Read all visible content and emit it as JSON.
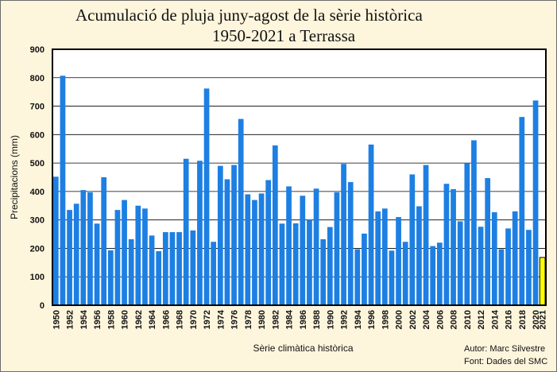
{
  "chart_data": {
    "type": "bar",
    "title_line1": "Acumulació de pluja juny-agost de la sèrie històrica",
    "title_line2": "1950-2021 a Terrassa",
    "xlabel": "Sèrie climàtica històrica",
    "ylabel": "Precipitacions (mm)",
    "ylim": [
      0,
      900
    ],
    "yticks": [
      0,
      100,
      200,
      300,
      400,
      500,
      600,
      700,
      800,
      900
    ],
    "xtick_labels": [
      "1950",
      "1952",
      "1954",
      "1956",
      "1958",
      "1960",
      "1962",
      "1964",
      "1966",
      "1968",
      "1970",
      "1972",
      "1974",
      "1976",
      "1978",
      "1980",
      "1982",
      "1984",
      "1986",
      "1988",
      "1990",
      "1992",
      "1994",
      "1996",
      "1998",
      "2000",
      "2002",
      "2004",
      "2006",
      "2008",
      "2010",
      "2012",
      "2014",
      "2016",
      "2018",
      "2020",
      "2021"
    ],
    "grid": true,
    "categories": [
      "1950",
      "1951",
      "1952",
      "1953",
      "1954",
      "1955",
      "1956",
      "1957",
      "1958",
      "1959",
      "1960",
      "1961",
      "1962",
      "1963",
      "1964",
      "1965",
      "1966",
      "1967",
      "1968",
      "1969",
      "1970",
      "1971",
      "1972",
      "1973",
      "1974",
      "1975",
      "1976",
      "1977",
      "1978",
      "1979",
      "1980",
      "1981",
      "1982",
      "1983",
      "1984",
      "1985",
      "1986",
      "1987",
      "1988",
      "1989",
      "1990",
      "1991",
      "1992",
      "1993",
      "1994",
      "1995",
      "1996",
      "1997",
      "1998",
      "1999",
      "2000",
      "2001",
      "2002",
      "2003",
      "2004",
      "2005",
      "2006",
      "2007",
      "2008",
      "2009",
      "2010",
      "2011",
      "2012",
      "2013",
      "2014",
      "2015",
      "2016",
      "2017",
      "2018",
      "2019",
      "2020",
      "2021"
    ],
    "values": [
      452,
      807,
      335,
      357,
      405,
      397,
      287,
      450,
      193,
      335,
      370,
      232,
      350,
      340,
      245,
      190,
      257,
      257,
      257,
      515,
      263,
      508,
      762,
      223,
      490,
      443,
      493,
      655,
      390,
      370,
      393,
      440,
      562,
      287,
      418,
      288,
      385,
      300,
      410,
      232,
      275,
      397,
      497,
      433,
      197,
      252,
      565,
      330,
      340,
      192,
      310,
      223,
      460,
      348,
      493,
      208,
      220,
      427,
      408,
      295,
      500,
      580,
      276,
      447,
      327,
      197,
      270,
      330,
      662,
      265,
      720,
      168
    ],
    "bar_color": "#1d7fe2",
    "highlight": {
      "index": 71,
      "color": "#ffff00"
    }
  },
  "credit": {
    "author": "Autor: Marc Silvestre",
    "source": "Font: Dades del SMC"
  }
}
